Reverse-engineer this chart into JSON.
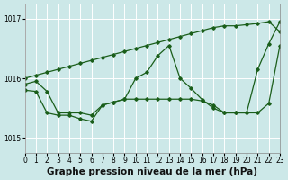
{
  "title": "Graphe pression niveau de la mer (hPa)",
  "bg_color": "#cce8e8",
  "line_color": "#1a5e1a",
  "xlim": [
    0,
    23
  ],
  "ylim": [
    1014.75,
    1017.25
  ],
  "yticks": [
    1015,
    1016,
    1017
  ],
  "xticks": [
    0,
    1,
    2,
    3,
    4,
    5,
    6,
    7,
    8,
    9,
    10,
    11,
    12,
    13,
    14,
    15,
    16,
    17,
    18,
    19,
    20,
    21,
    22,
    23
  ],
  "series1_x": [
    0,
    1,
    2,
    3,
    4,
    5,
    6,
    7,
    8,
    9,
    10,
    11,
    12,
    13,
    14,
    15,
    16,
    17,
    18,
    19,
    20,
    21,
    22,
    23
  ],
  "series1_y": [
    1016.0,
    1016.05,
    1016.1,
    1016.15,
    1016.2,
    1016.25,
    1016.3,
    1016.35,
    1016.4,
    1016.45,
    1016.5,
    1016.55,
    1016.6,
    1016.65,
    1016.7,
    1016.75,
    1016.8,
    1016.85,
    1016.88,
    1016.88,
    1016.9,
    1016.92,
    1016.95,
    1016.78
  ],
  "series2_x": [
    0,
    1,
    2,
    3,
    4,
    5,
    6,
    7,
    8,
    9,
    10,
    11,
    12,
    13,
    14,
    15,
    16,
    17,
    18,
    19,
    20,
    21,
    22,
    23
  ],
  "series2_y": [
    1015.9,
    1015.95,
    1015.78,
    1015.42,
    1015.42,
    1015.42,
    1015.38,
    1015.55,
    1015.6,
    1015.65,
    1016.0,
    1016.1,
    1016.38,
    1016.55,
    1016.0,
    1015.83,
    1015.64,
    1015.5,
    1015.42,
    1015.42,
    1015.42,
    1016.15,
    1016.58,
    1016.95
  ],
  "series3_x": [
    0,
    1,
    2,
    3,
    4,
    5,
    6,
    7,
    8,
    9,
    10,
    11,
    12,
    13,
    14,
    15,
    16,
    17,
    18,
    19,
    20,
    21,
    22,
    23
  ],
  "series3_y": [
    1015.8,
    1015.78,
    1015.42,
    1015.38,
    1015.38,
    1015.32,
    1015.28,
    1015.55,
    1015.6,
    1015.65,
    1015.65,
    1015.65,
    1015.65,
    1015.65,
    1015.65,
    1015.65,
    1015.62,
    1015.55,
    1015.42,
    1015.42,
    1015.42,
    1015.42,
    1015.58,
    1016.55
  ],
  "title_fontsize": 7.5,
  "tick_fontsize": 5.5
}
